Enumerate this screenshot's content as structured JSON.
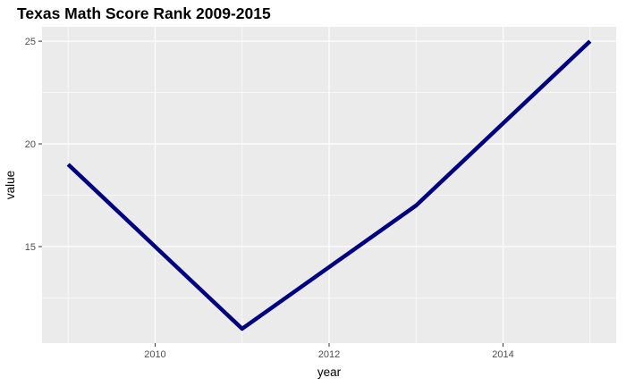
{
  "chart_data": {
    "type": "line",
    "title": "Texas Math Score Rank 2009-2015",
    "xlabel": "year",
    "ylabel": "value",
    "x": [
      2009,
      2010,
      2011,
      2012,
      2013,
      2014,
      2015
    ],
    "series": [
      {
        "values": [
          19,
          15,
          11,
          14,
          17,
          21,
          25
        ]
      }
    ],
    "xlim": [
      2008.7,
      2015.3
    ],
    "ylim": [
      10.3,
      25.7
    ],
    "x_ticks": [
      2010,
      2012,
      2014
    ],
    "y_ticks": [
      15,
      20,
      25
    ],
    "grid": true,
    "colors": {
      "panel": "#ebebeb",
      "grid": "#ffffff",
      "line": "#000080"
    }
  }
}
